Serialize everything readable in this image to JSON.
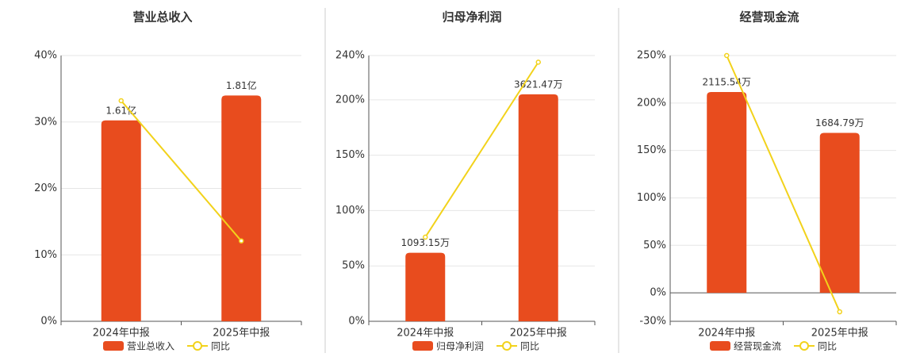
{
  "chart_data": [
    {
      "type": "bar-line",
      "title": "营业总收入",
      "categories": [
        "2024年中报",
        "2025年中报"
      ],
      "series": [
        {
          "name": "营业总收入",
          "color": "#e84c1e",
          "axis": "y2",
          "values": [
            1.61,
            1.81
          ],
          "value_labels": [
            "1.61亿",
            "1.81亿"
          ]
        },
        {
          "name": "同比",
          "color": "#f2d21b",
          "values": [
            33.2,
            12.1
          ]
        }
      ],
      "ylim": [
        0,
        40
      ],
      "yticks": [
        {
          "value": 0,
          "label": "0%"
        },
        {
          "value": 10,
          "label": "10%"
        },
        {
          "value": 20,
          "label": "20%"
        },
        {
          "value": 30,
          "label": "30%"
        },
        {
          "value": 40,
          "label": "40%"
        }
      ],
      "y2lim": [
        0,
        2.13
      ],
      "grid": true
    },
    {
      "type": "bar-line",
      "title": "归母净利润",
      "categories": [
        "2024年中报",
        "2025年中报"
      ],
      "series": [
        {
          "name": "归母净利润",
          "color": "#e84c1e",
          "axis": "y2",
          "values": [
            1093.15,
            3621.47
          ],
          "value_labels": [
            "1093.15万",
            "3621.47万"
          ]
        },
        {
          "name": "同比",
          "color": "#f2d21b",
          "values": [
            76,
            234
          ]
        }
      ],
      "ylim": [
        0,
        240
      ],
      "yticks": [
        {
          "value": 0,
          "label": "0%"
        },
        {
          "value": 50,
          "label": "50%"
        },
        {
          "value": 100,
          "label": "100%"
        },
        {
          "value": 150,
          "label": "150%"
        },
        {
          "value": 200,
          "label": "200%"
        },
        {
          "value": 240,
          "label": "240%"
        }
      ],
      "y2lim": [
        0,
        4240
      ],
      "grid": true
    },
    {
      "type": "bar-line",
      "title": "经营现金流",
      "categories": [
        "2024年中报",
        "2025年中报"
      ],
      "series": [
        {
          "name": "经营现金流",
          "color": "#e84c1e",
          "axis": "y2",
          "values": [
            2115.54,
            1684.79
          ],
          "value_labels": [
            "2115.54万",
            "1684.79万"
          ]
        },
        {
          "name": "同比",
          "color": "#f2d21b",
          "values": [
            250,
            -20
          ]
        }
      ],
      "ylim": [
        -30,
        250
      ],
      "yticks": [
        {
          "value": -30,
          "label": "-30%"
        },
        {
          "value": 0,
          "label": "0%"
        },
        {
          "value": 50,
          "label": "50%"
        },
        {
          "value": 100,
          "label": "100%"
        },
        {
          "value": 150,
          "label": "150%"
        },
        {
          "value": 200,
          "label": "200%"
        },
        {
          "value": 250,
          "label": "250%"
        }
      ],
      "y2lim": [
        -300,
        2500
      ],
      "grid": true
    }
  ]
}
